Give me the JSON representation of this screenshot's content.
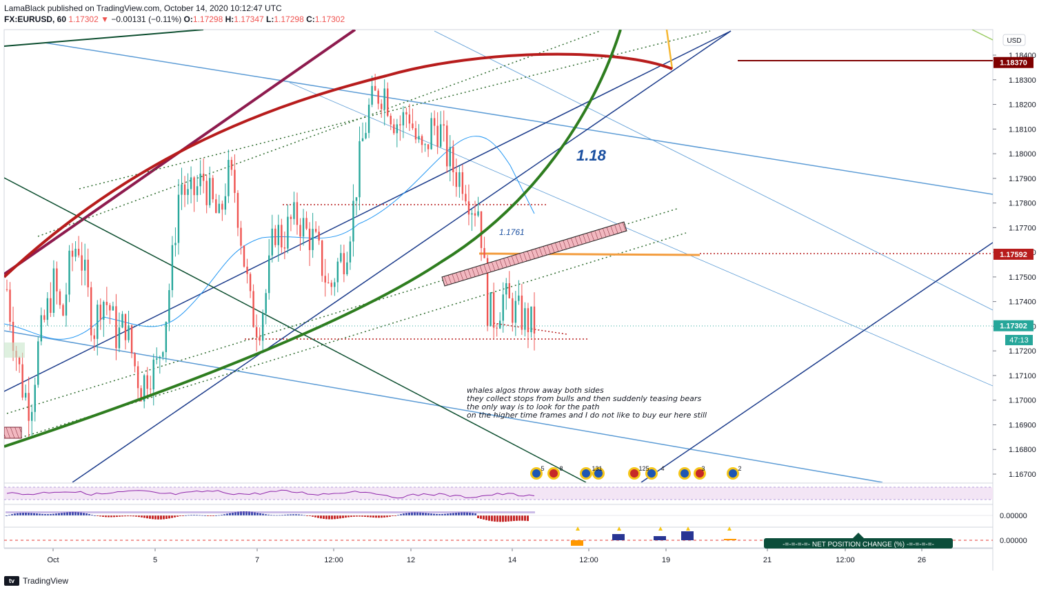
{
  "header": {
    "publisher": "LamaBlack published on TradingView.com, October 14, 2020 10:12:47 UTC",
    "symbol": "FX:EURUSD, 60",
    "last": "1.17302",
    "change": "−0.00131 (−0.11%)",
    "o_label": "O:",
    "o": "1.17298",
    "h_label": "H:",
    "h": "1.17347",
    "l_label": "L:",
    "l": "1.17298",
    "c_label": "C:",
    "c": "1.17302"
  },
  "currency_badge": "USD",
  "footer": {
    "brand": "TradingView",
    "logo": "tv"
  },
  "colors": {
    "up": "#26a69a",
    "down": "#ef5350",
    "ma": "#2196f3",
    "green_arc": "#2e7d1f",
    "red_arc": "#b71c1c",
    "navy": "#1a3a8a",
    "light_blue": "#5b9bd5",
    "dark_green": "#0b4d2e",
    "maroon": "#8e1b4e"
  },
  "chart_data": {
    "type": "candlestick",
    "symbol": "EURUSD",
    "timeframe": "60",
    "y_ticks": [
      "1.18400",
      "1.18300",
      "1.18200",
      "1.18100",
      "1.18000",
      "1.17900",
      "1.17800",
      "1.17700",
      "1.17600",
      "1.17500",
      "1.17400",
      "1.17300",
      "1.17200",
      "1.17100",
      "1.17000",
      "1.16900",
      "1.16800",
      "1.16700"
    ],
    "y_tick_values": [
      1.184,
      1.183,
      1.182,
      1.181,
      1.18,
      1.179,
      1.178,
      1.177,
      1.176,
      1.175,
      1.174,
      1.173,
      1.172,
      1.171,
      1.17,
      1.169,
      1.168,
      1.167
    ],
    "ylim": [
      1.1663,
      1.1847
    ],
    "x_ticks": [
      "Oct",
      "5",
      "7",
      "12:00",
      "12",
      "14",
      "12:00",
      "19",
      "21",
      "12:00",
      "26"
    ],
    "price_labels": [
      {
        "value": "1.18370",
        "price": 1.1837,
        "color": "#7f0000"
      },
      {
        "value": "1.17592",
        "price": 1.17592,
        "color": "#b71c1c"
      },
      {
        "value": "1.17302",
        "price": 1.17302,
        "color": "#26a69a"
      }
    ],
    "countdown": "47:13",
    "annotations": {
      "big_label": "1.18",
      "small_label": "1.1761",
      "note": [
        "whales algos throw away both sides",
        "they collect stops from bulls and then suddenly teasing bears",
        "the only way is to look for the path",
        "on the higher time frames and I do not like to buy eur here still"
      ]
    },
    "oscillator_ticks": [
      "0.00000",
      "0.00000"
    ],
    "net_position_label": "-=-=-=-=- NET POSITION CHANGE (%) -=-=-=-=-",
    "event_counts": [
      "5",
      "8",
      "131",
      "125",
      "4",
      "3",
      "2"
    ],
    "close_path": [
      1.1745,
      1.1722,
      1.1705,
      1.1697,
      1.1722,
      1.1735,
      1.1748,
      1.1732,
      1.1755,
      1.1765,
      1.1748,
      1.1728,
      1.1742,
      1.1738,
      1.1725,
      1.1732,
      1.1717,
      1.1705,
      1.1712,
      1.1713,
      1.1729,
      1.1756,
      1.179,
      1.1781,
      1.1785,
      1.179,
      1.178,
      1.1772,
      1.1792,
      1.1785,
      1.176,
      1.1736,
      1.173,
      1.1745,
      1.177,
      1.1765,
      1.1772,
      1.1774,
      1.1768,
      1.1765,
      1.1755,
      1.1744,
      1.1755,
      1.176,
      1.1778,
      1.1802,
      1.1818,
      1.1824,
      1.1826,
      1.1815,
      1.1812,
      1.1818,
      1.1805,
      1.1798,
      1.1812,
      1.181,
      1.1798,
      1.1792,
      1.179,
      1.178,
      1.1778,
      1.1738,
      1.1733,
      1.1742,
      1.1738,
      1.1735,
      1.1732,
      1.173
    ]
  }
}
